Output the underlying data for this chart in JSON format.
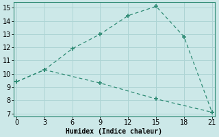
{
  "line1_x": [
    0,
    3,
    6,
    9,
    12,
    15,
    18,
    21
  ],
  "line1_y": [
    9.4,
    10.3,
    11.9,
    13.0,
    14.4,
    15.1,
    12.8,
    7.1
  ],
  "line2_x": [
    0,
    3,
    9,
    15,
    21
  ],
  "line2_y": [
    9.4,
    10.3,
    9.3,
    8.1,
    7.1
  ],
  "color": "#2e8b74",
  "bg_color": "#cce8e8",
  "grid_color": "#add4d4",
  "xlabel": "Humidex (Indice chaleur)",
  "xlim": [
    -0.3,
    21.3
  ],
  "ylim": [
    6.8,
    15.4
  ],
  "xticks": [
    0,
    3,
    6,
    9,
    12,
    15,
    18,
    21
  ],
  "yticks": [
    7,
    8,
    9,
    10,
    11,
    12,
    13,
    14,
    15
  ],
  "xlabel_fontsize": 7,
  "tick_fontsize": 7
}
